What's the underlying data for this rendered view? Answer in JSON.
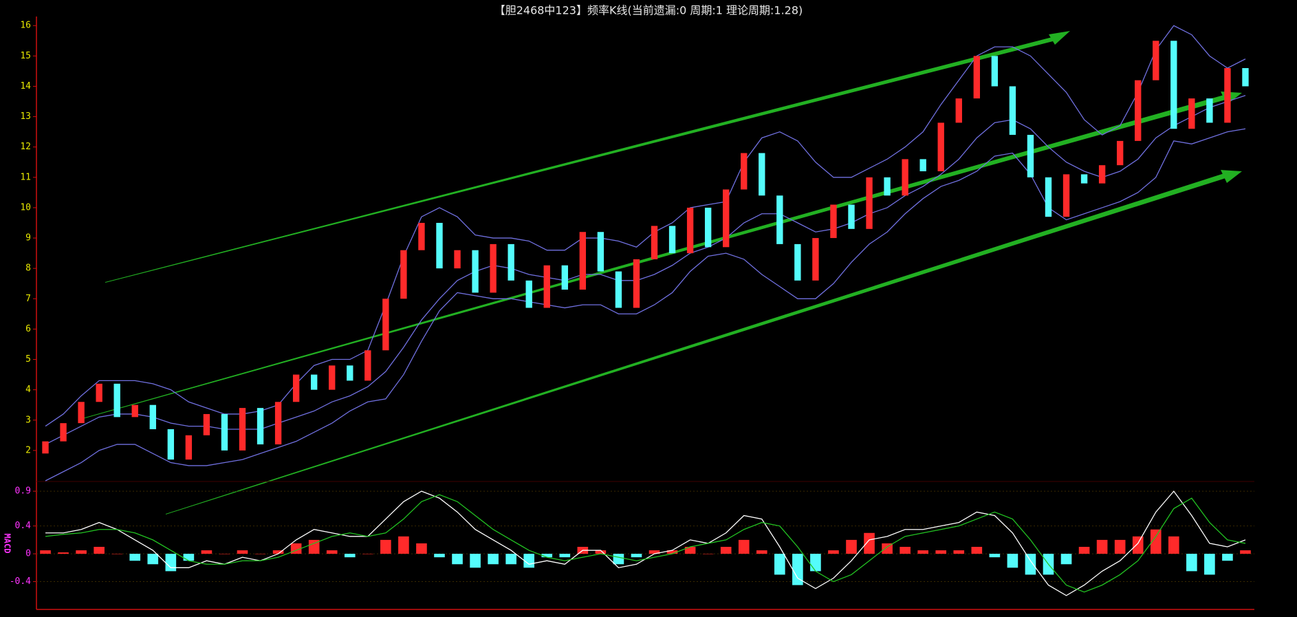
{
  "chart_data": [
    {
      "type": "candlestick",
      "title": "【胆2468中123】频率K线(当前遗漏:0 周期:1 理论周期:1.28)",
      "up_color": "#ff2a2a",
      "down_color": "#54fcfc",
      "open": [
        1.9,
        2.3,
        2.9,
        3.6,
        4.2,
        3.1,
        3.5,
        2.7,
        1.7,
        2.5,
        3.2,
        2.0,
        3.4,
        2.2,
        3.6,
        4.5,
        4.0,
        4.8,
        4.3,
        5.3,
        7.0,
        8.6,
        9.5,
        8.0,
        8.6,
        7.2,
        8.8,
        7.6,
        6.7,
        8.1,
        7.3,
        9.2,
        7.9,
        6.7,
        8.3,
        9.4,
        8.5,
        10.0,
        8.7,
        10.6,
        11.8,
        10.4,
        8.8,
        7.6,
        9.0,
        10.1,
        9.3,
        11.0,
        10.4,
        11.6,
        11.2,
        12.8,
        13.6,
        15.0,
        14.0,
        12.4,
        11.0,
        9.7,
        11.1,
        10.8,
        11.4,
        12.2,
        14.2,
        15.5,
        12.6,
        13.6,
        12.8,
        14.6
      ],
      "close": [
        2.3,
        2.9,
        3.6,
        4.2,
        3.1,
        3.5,
        2.7,
        1.7,
        2.5,
        3.2,
        2.0,
        3.4,
        2.2,
        3.6,
        4.5,
        4.0,
        4.8,
        4.3,
        5.3,
        7.0,
        8.6,
        9.5,
        8.0,
        8.6,
        7.2,
        8.8,
        7.6,
        6.7,
        8.1,
        7.3,
        9.2,
        7.9,
        6.7,
        8.3,
        9.4,
        8.5,
        10.0,
        8.7,
        10.6,
        11.8,
        10.4,
        8.8,
        7.6,
        9.0,
        10.1,
        9.3,
        11.0,
        10.4,
        11.6,
        11.2,
        12.8,
        13.6,
        15.0,
        14.0,
        12.4,
        11.0,
        9.7,
        11.1,
        10.8,
        11.4,
        12.2,
        14.2,
        15.5,
        12.6,
        13.6,
        12.8,
        14.6,
        14.0
      ],
      "lines": [
        {
          "color": "#7070e0",
          "values": [
            2.2,
            2.5,
            2.8,
            3.1,
            3.2,
            3.2,
            3.1,
            2.9,
            2.8,
            2.8,
            2.7,
            2.7,
            2.7,
            2.9,
            3.1,
            3.3,
            3.6,
            3.8,
            4.1,
            4.6,
            5.4,
            6.3,
            7.0,
            7.6,
            7.9,
            8.1,
            8.0,
            7.8,
            7.7,
            7.6,
            7.8,
            7.8,
            7.6,
            7.6,
            7.8,
            8.1,
            8.5,
            8.7,
            9.0,
            9.5,
            9.8,
            9.8,
            9.5,
            9.2,
            9.3,
            9.5,
            9.8,
            10.0,
            10.4,
            10.7,
            11.1,
            11.6,
            12.3,
            12.8,
            12.9,
            12.6,
            12.0,
            11.5,
            11.2,
            11.0,
            11.2,
            11.6,
            12.3,
            12.7,
            13.0,
            13.3,
            13.5,
            13.7
          ]
        },
        {
          "color": "#7070e0",
          "values": [
            2.8,
            3.2,
            3.8,
            4.3,
            4.3,
            4.3,
            4.2,
            4.0,
            3.6,
            3.4,
            3.2,
            3.2,
            3.3,
            3.5,
            4.2,
            4.8,
            5.0,
            5.0,
            5.3,
            6.8,
            8.4,
            9.7,
            10.0,
            9.7,
            9.1,
            9.0,
            9.0,
            8.9,
            8.6,
            8.6,
            9.0,
            9.0,
            8.9,
            8.7,
            9.2,
            9.5,
            10.0,
            10.1,
            10.2,
            11.5,
            12.3,
            12.5,
            12.2,
            11.5,
            11.0,
            11.0,
            11.3,
            11.6,
            12.0,
            12.5,
            13.4,
            14.2,
            15.0,
            15.3,
            15.3,
            15.0,
            14.4,
            13.8,
            12.9,
            12.4,
            12.7,
            13.8,
            15.2,
            16.0,
            15.7,
            15.0,
            14.6,
            14.9
          ]
        },
        {
          "color": "#7070e0",
          "values": [
            1.0,
            1.3,
            1.6,
            2.0,
            2.2,
            2.2,
            1.9,
            1.6,
            1.5,
            1.5,
            1.6,
            1.7,
            1.9,
            2.1,
            2.3,
            2.6,
            2.9,
            3.3,
            3.6,
            3.7,
            4.5,
            5.6,
            6.6,
            7.2,
            7.1,
            7.0,
            7.0,
            6.9,
            6.8,
            6.7,
            6.8,
            6.8,
            6.5,
            6.5,
            6.8,
            7.2,
            7.9,
            8.4,
            8.5,
            8.3,
            7.8,
            7.4,
            7.0,
            7.0,
            7.5,
            8.2,
            8.8,
            9.2,
            9.8,
            10.3,
            10.7,
            10.9,
            11.2,
            11.7,
            11.8,
            11.1,
            10.0,
            9.6,
            9.8,
            10.0,
            10.2,
            10.5,
            11.0,
            12.2,
            12.1,
            12.3,
            12.5,
            12.6
          ]
        }
      ],
      "ylim": [
        1,
        16.3
      ],
      "yticks": [
        2,
        3,
        4,
        5,
        6,
        7,
        8,
        9,
        10,
        11,
        12,
        13,
        14,
        15,
        16
      ]
    },
    {
      "type": "macd",
      "ylabel": "MACD",
      "lines": [
        {
          "color": "#ffffff",
          "values": [
            0.3,
            0.3,
            0.35,
            0.45,
            0.35,
            0.2,
            0.05,
            -0.2,
            -0.2,
            -0.1,
            -0.15,
            -0.05,
            -0.1,
            0.0,
            0.2,
            0.35,
            0.3,
            0.25,
            0.25,
            0.5,
            0.75,
            0.9,
            0.8,
            0.6,
            0.35,
            0.2,
            0.05,
            -0.15,
            -0.1,
            -0.15,
            0.05,
            0.05,
            -0.2,
            -0.15,
            0.0,
            0.05,
            0.2,
            0.15,
            0.3,
            0.55,
            0.5,
            0.1,
            -0.35,
            -0.5,
            -0.35,
            -0.1,
            0.2,
            0.25,
            0.35,
            0.35,
            0.4,
            0.45,
            0.6,
            0.55,
            0.3,
            -0.1,
            -0.45,
            -0.6,
            -0.45,
            -0.25,
            -0.1,
            0.15,
            0.6,
            0.9,
            0.55,
            0.15,
            0.1,
            0.2
          ]
        },
        {
          "color": "#22c322",
          "values": [
            0.25,
            0.28,
            0.3,
            0.35,
            0.35,
            0.3,
            0.2,
            0.05,
            -0.1,
            -0.15,
            -0.15,
            -0.1,
            -0.1,
            -0.05,
            0.05,
            0.15,
            0.25,
            0.3,
            0.25,
            0.3,
            0.5,
            0.75,
            0.85,
            0.75,
            0.55,
            0.35,
            0.2,
            0.05,
            -0.05,
            -0.1,
            -0.05,
            0.0,
            -0.05,
            -0.1,
            -0.05,
            0.0,
            0.1,
            0.15,
            0.2,
            0.35,
            0.45,
            0.4,
            0.1,
            -0.25,
            -0.4,
            -0.3,
            -0.1,
            0.1,
            0.25,
            0.3,
            0.35,
            0.4,
            0.5,
            0.6,
            0.5,
            0.2,
            -0.15,
            -0.45,
            -0.55,
            -0.45,
            -0.3,
            -0.1,
            0.25,
            0.65,
            0.8,
            0.45,
            0.2,
            0.15
          ]
        }
      ],
      "histogram": [
        0.05,
        0.02,
        0.05,
        0.1,
        0,
        -0.1,
        -0.15,
        -0.25,
        -0.1,
        0.05,
        0,
        0.05,
        0,
        0.05,
        0.15,
        0.2,
        0.05,
        -0.05,
        0,
        0.2,
        0.25,
        0.15,
        -0.05,
        -0.15,
        -0.2,
        -0.15,
        -0.15,
        -0.2,
        -0.05,
        -0.05,
        0.1,
        0.05,
        -0.15,
        -0.05,
        0.05,
        0.05,
        0.1,
        0,
        0.1,
        0.2,
        0.05,
        -0.3,
        -0.45,
        -0.25,
        0.05,
        0.2,
        0.3,
        0.15,
        0.1,
        0.05,
        0.05,
        0.05,
        0.1,
        -0.05,
        -0.2,
        -0.3,
        -0.3,
        -0.15,
        0.1,
        0.2,
        0.2,
        0.25,
        0.35,
        0.25,
        -0.25,
        -0.3,
        -0.1,
        0.05
      ],
      "up_color": "#ff2a2a",
      "down_color": "#54fcfc",
      "ylim": [
        -0.8,
        1.0
      ],
      "yticks": [
        -0.4,
        0,
        0.4,
        0.9
      ],
      "grid": true
    }
  ]
}
